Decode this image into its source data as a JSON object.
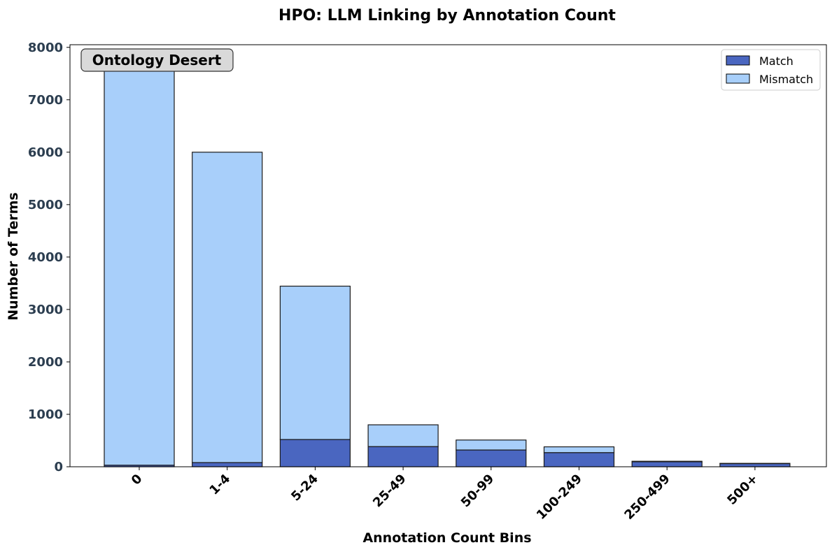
{
  "chart_data": {
    "type": "bar",
    "stacked": true,
    "title": "HPO: LLM Linking by Annotation Count",
    "xlabel": "Annotation Count Bins",
    "ylabel": "Number of Terms",
    "categories": [
      "0",
      "1-4",
      "5-24",
      "25-49",
      "50-99",
      "100-249",
      "250-499",
      "500+"
    ],
    "series": [
      {
        "name": "Match",
        "color": "#4a66c0",
        "values": [
          30,
          80,
          520,
          385,
          320,
          270,
          95,
          60
        ]
      },
      {
        "name": "Mismatch",
        "color": "#a8cffa",
        "values": [
          7640,
          5920,
          2925,
          415,
          190,
          110,
          10,
          5
        ]
      }
    ],
    "ylim": [
      0,
      8050
    ],
    "yticks": [
      0,
      1000,
      2000,
      3000,
      4000,
      5000,
      6000,
      7000,
      8000
    ],
    "grid": false,
    "legend_position": "top-right",
    "annotation": "Ontology Desert"
  }
}
